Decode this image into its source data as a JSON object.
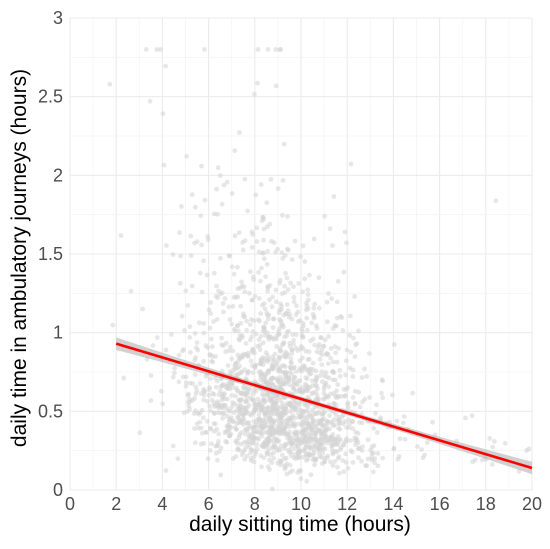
{
  "chart_data": {
    "type": "scatter",
    "title": "",
    "xlabel": "daily sitting time (hours)",
    "ylabel": "daily time in ambulatory journeys (hours)",
    "xlim": [
      0,
      20
    ],
    "ylim": [
      0,
      3
    ],
    "x_ticks": [
      "0",
      "2",
      "4",
      "6",
      "8",
      "10",
      "12",
      "14",
      "16",
      "18",
      "20"
    ],
    "y_ticks": [
      "0",
      "0.5",
      "1",
      "1.5",
      "2",
      "2.5",
      "3"
    ],
    "grid": true,
    "point_color": "#d3d3d3",
    "scatter_summary": {
      "approx_n_points": 1800,
      "x_center": 9,
      "x_spread_sd": 1.9,
      "y_center": 0.5,
      "y_range": [
        0,
        2.8
      ]
    },
    "trend_line": {
      "type": "linear",
      "color": "#ff0000",
      "x_range": [
        2,
        20
      ],
      "start": [
        2,
        0.93
      ],
      "end": [
        20,
        0.14
      ]
    },
    "confidence_band": {
      "color": "#b3b3b3",
      "half_width_start": 0.04,
      "half_width_mid": 0.015,
      "half_width_end": 0.04
    }
  }
}
